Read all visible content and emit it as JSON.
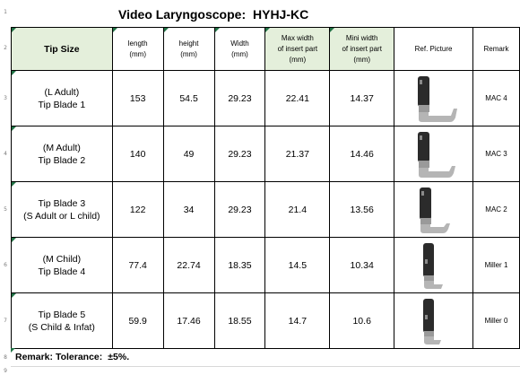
{
  "title": {
    "product": "Video Laryngoscope:",
    "model": "HYHJ-KC"
  },
  "row_numbers": [
    "1",
    "2",
    "3",
    "4",
    "5",
    "6",
    "7",
    "8",
    "9"
  ],
  "headers": {
    "tip_size": "Tip Size",
    "length": [
      "length",
      "(mm)"
    ],
    "height": [
      "height",
      "(mm)"
    ],
    "width": [
      "Width",
      "(mm)"
    ],
    "max_width": [
      "Max width",
      "of insert part",
      "(mm)"
    ],
    "mini_width": [
      "Mini width",
      "of insert part",
      "(mm)"
    ],
    "ref_picture": "Ref. Picture",
    "remark": "Remark"
  },
  "rows": [
    {
      "tip": [
        "(L Adult)",
        "Tip Blade 1"
      ],
      "length": "153",
      "height": "54.5",
      "width": "29.23",
      "max_width": "22.41",
      "mini_width": "14.37",
      "remark": "MAC 4",
      "blade_icon": "mac-blade-icon"
    },
    {
      "tip": [
        "(M Adult)",
        "Tip Blade 2"
      ],
      "length": "140",
      "height": "49",
      "width": "29.23",
      "max_width": "21.37",
      "mini_width": "14.46",
      "remark": "MAC 3",
      "blade_icon": "mac-blade-icon"
    },
    {
      "tip": [
        "Tip Blade 3",
        "(S Adult or L child)"
      ],
      "length": "122",
      "height": "34",
      "width": "29.23",
      "max_width": "21.4",
      "mini_width": "13.56",
      "remark": "MAC 2",
      "blade_icon": "mac-blade-icon"
    },
    {
      "tip": [
        "(M Child)",
        "Tip Blade 4"
      ],
      "length": "77.4",
      "height": "22.74",
      "width": "18.35",
      "max_width": "14.5",
      "mini_width": "10.34",
      "remark": "Miller 1",
      "blade_icon": "miller-blade-icon"
    },
    {
      "tip": [
        "Tip Blade 5",
        "(S Child & Infat)"
      ],
      "length": "59.9",
      "height": "17.46",
      "width": "18.55",
      "max_width": "14.7",
      "mini_width": "10.6",
      "remark": "Miller 0",
      "blade_icon": "miller-blade-icon"
    }
  ],
  "footer": {
    "label": "Remark: Tolerance:",
    "value": "±5%."
  },
  "colors": {
    "header_fill": "#e4efdb",
    "corner_marker": "#217346",
    "blade_body": "#2b2b2b",
    "blade_metal": "#b5b5b5"
  }
}
